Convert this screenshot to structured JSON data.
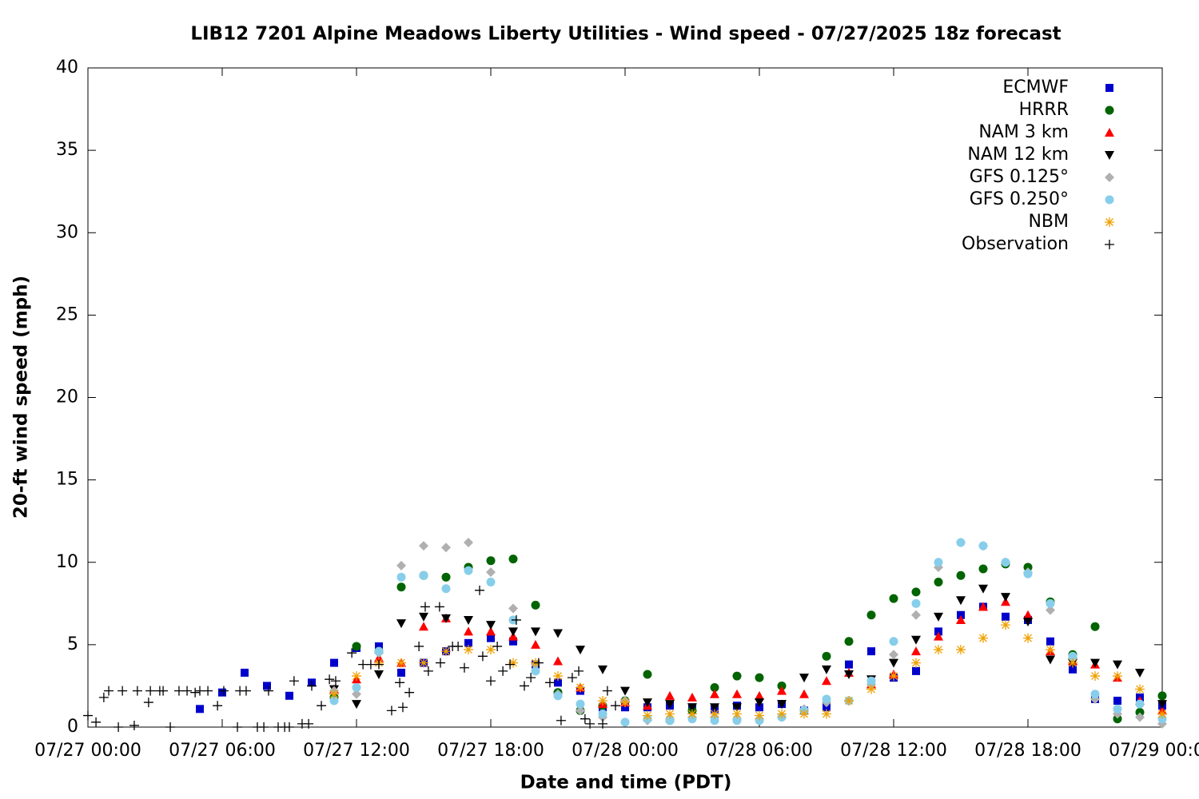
{
  "chart_data": {
    "type": "scatter",
    "title": "LIB12 7201 Alpine Meadows Liberty Utilities - Wind speed - 07/27/2025 18z forecast",
    "x_label": "Date and time (PDT)",
    "y_label": "20-ft wind speed (mph)",
    "xlim": [
      0,
      48
    ],
    "ylim": [
      0,
      40
    ],
    "xticks": [
      {
        "value": 0,
        "label": "07/27 00:00"
      },
      {
        "value": 6,
        "label": "07/27 06:00"
      },
      {
        "value": 12,
        "label": "07/27 12:00"
      },
      {
        "value": 18,
        "label": "07/27 18:00"
      },
      {
        "value": 24,
        "label": "07/28 00:00"
      },
      {
        "value": 30,
        "label": "07/28 06:00"
      },
      {
        "value": 36,
        "label": "07/28 12:00"
      },
      {
        "value": 42,
        "label": "07/28 18:00"
      },
      {
        "value": 48,
        "label": "07/29 00:00"
      }
    ],
    "yticks": [
      0,
      5,
      10,
      15,
      20,
      25,
      30,
      35,
      40
    ],
    "grid": false,
    "legend": "top-right",
    "series": [
      {
        "name": "ECMWF",
        "color": "#0000cc",
        "marker": "square",
        "x": [
          5,
          6,
          7,
          8,
          9,
          10,
          11,
          12,
          13,
          14,
          15,
          16,
          17,
          18,
          19,
          20,
          21,
          22,
          23,
          24,
          25,
          26,
          27,
          28,
          29,
          30,
          31,
          32,
          33,
          34,
          35,
          36,
          37,
          38,
          39,
          40,
          41,
          42,
          43,
          44,
          45,
          46,
          47,
          48
        ],
        "values": [
          1.1,
          2.1,
          3.3,
          2.5,
          1.9,
          2.7,
          3.9,
          4.8,
          4.9,
          3.3,
          3.9,
          4.6,
          5.1,
          5.4,
          5.2,
          3.8,
          2.7,
          2.2,
          1.2,
          1.2,
          1.2,
          1.3,
          1.2,
          1.1,
          1.3,
          1.2,
          1.4,
          1.0,
          1.2,
          3.8,
          4.6,
          3.0,
          3.4,
          5.8,
          6.8,
          7.3,
          6.7,
          6.5,
          5.2,
          3.5,
          1.7,
          1.6,
          1.8,
          1.3
        ]
      },
      {
        "name": "HRRR",
        "color": "#006400",
        "marker": "circle",
        "x": [
          11,
          12,
          13,
          14,
          15,
          16,
          17,
          18,
          19,
          20,
          21,
          22,
          23,
          24,
          25,
          26,
          27,
          28,
          29,
          30,
          31,
          32,
          33,
          34,
          35,
          36,
          37,
          38,
          39,
          40,
          41,
          42,
          43,
          44,
          45,
          46,
          47,
          48
        ],
        "values": [
          1.8,
          4.9,
          4.6,
          8.5,
          9.2,
          9.1,
          9.7,
          10.1,
          10.2,
          7.4,
          2.1,
          1.0,
          1.3,
          1.6,
          3.2,
          0.4,
          1.0,
          2.4,
          3.1,
          3.0,
          2.5,
          1.0,
          4.3,
          5.2,
          6.8,
          7.8,
          8.2,
          8.8,
          9.2,
          9.6,
          9.9,
          9.7,
          7.6,
          4.4,
          6.1,
          0.5,
          0.9,
          1.9
        ]
      },
      {
        "name": "NAM 3 km",
        "color": "#ff0000",
        "marker": "triangle",
        "x": [
          11,
          12,
          13,
          14,
          15,
          16,
          17,
          18,
          19,
          20,
          21,
          22,
          23,
          24,
          25,
          26,
          27,
          28,
          29,
          30,
          31,
          32,
          33,
          34,
          35,
          36,
          37,
          38,
          39,
          40,
          41,
          42,
          43,
          44,
          45,
          46,
          47,
          48
        ],
        "values": [
          2.3,
          2.9,
          4.2,
          3.9,
          6.1,
          6.6,
          5.8,
          5.8,
          5.5,
          5.0,
          4.0,
          2.4,
          1.4,
          1.5,
          1.3,
          1.9,
          1.8,
          2.0,
          2.0,
          1.9,
          2.2,
          2.0,
          2.8,
          3.3,
          2.6,
          3.2,
          4.6,
          5.5,
          6.5,
          7.3,
          7.6,
          6.8,
          4.6,
          4.0,
          3.8,
          3.0,
          1.6,
          1.0
        ]
      },
      {
        "name": "NAM 12 km",
        "color": "#000000",
        "marker": "triangle-down",
        "x": [
          11,
          12,
          13,
          14,
          15,
          16,
          17,
          18,
          19,
          20,
          21,
          22,
          23,
          24,
          25,
          26,
          27,
          28,
          29,
          30,
          31,
          32,
          33,
          34,
          35,
          36,
          37,
          38,
          39,
          40,
          41,
          42,
          43,
          44,
          45,
          46,
          47,
          48
        ],
        "values": [
          2.3,
          1.4,
          3.2,
          6.3,
          6.7,
          6.6,
          6.5,
          6.2,
          5.8,
          5.8,
          5.7,
          4.7,
          3.5,
          2.2,
          1.5,
          1.4,
          1.2,
          1.2,
          1.2,
          1.5,
          1.4,
          3.0,
          3.5,
          3.2,
          2.9,
          3.9,
          5.3,
          6.7,
          7.7,
          8.4,
          7.9,
          6.4,
          4.1,
          3.9,
          3.9,
          3.8,
          3.3,
          1.4
        ]
      },
      {
        "name": "GFS 0.125°",
        "color": "#b0b0b0",
        "marker": "diamond",
        "x": [
          11,
          12,
          13,
          14,
          15,
          16,
          17,
          18,
          19,
          20,
          21,
          22,
          23,
          24,
          25,
          26,
          27,
          28,
          29,
          30,
          31,
          32,
          33,
          34,
          35,
          36,
          37,
          38,
          39,
          40,
          41,
          42,
          43,
          44,
          45,
          46,
          47,
          48
        ],
        "values": [
          2.2,
          2.0,
          4.5,
          9.8,
          11.0,
          10.9,
          11.2,
          9.4,
          7.2,
          3.8,
          2.0,
          1.0,
          0.6,
          1.6,
          0.4,
          0.5,
          0.6,
          0.6,
          0.5,
          0.5,
          0.6,
          1.1,
          1.5,
          1.6,
          2.6,
          4.4,
          6.8,
          9.7,
          11.2,
          11.0,
          10.0,
          9.4,
          7.1,
          4.2,
          1.7,
          0.8,
          0.6,
          0.2
        ]
      },
      {
        "name": "GFS 0.250°",
        "color": "#87ceeb",
        "marker": "circle",
        "x": [
          11,
          12,
          13,
          14,
          15,
          16,
          17,
          18,
          19,
          20,
          21,
          22,
          23,
          24,
          25,
          26,
          27,
          28,
          29,
          30,
          31,
          32,
          33,
          34,
          35,
          36,
          37,
          38,
          39,
          40,
          41,
          42,
          43,
          44,
          45,
          46,
          47,
          48
        ],
        "values": [
          1.6,
          2.4,
          4.6,
          9.1,
          9.2,
          8.4,
          9.5,
          8.8,
          6.5,
          3.4,
          1.9,
          1.4,
          0.8,
          0.3,
          0.5,
          0.4,
          0.5,
          0.4,
          0.4,
          0.4,
          0.6,
          1.0,
          1.7,
          1.6,
          2.8,
          5.2,
          7.5,
          10.0,
          11.2,
          11.0,
          10.0,
          9.3,
          7.5,
          4.3,
          2.0,
          1.1,
          1.4,
          0.5
        ]
      },
      {
        "name": "NBM",
        "color": "#f0a000",
        "marker": "star",
        "x": [
          11,
          12,
          13,
          14,
          15,
          16,
          17,
          18,
          19,
          20,
          21,
          22,
          23,
          24,
          25,
          26,
          27,
          28,
          29,
          30,
          31,
          32,
          33,
          34,
          35,
          36,
          37,
          38,
          39,
          40,
          41,
          42,
          43,
          44,
          45,
          46,
          47,
          48
        ],
        "values": [
          2.0,
          3.1,
          3.9,
          3.9,
          3.9,
          4.6,
          4.7,
          4.7,
          3.9,
          3.9,
          3.1,
          2.4,
          1.6,
          1.5,
          0.7,
          0.8,
          0.8,
          0.8,
          0.8,
          0.7,
          0.8,
          0.8,
          0.8,
          1.6,
          2.3,
          3.1,
          3.9,
          4.7,
          4.7,
          5.4,
          6.2,
          5.4,
          4.7,
          3.9,
          3.1,
          3.1,
          2.3,
          0.8
        ]
      },
      {
        "name": "Observation",
        "color": "#000000",
        "marker": "plus",
        "x": [
          0.0,
          0.36,
          0.71,
          0.93,
          1.36,
          1.54,
          2.07,
          2.21,
          2.71,
          2.79,
          3.21,
          3.36,
          3.68,
          4.07,
          4.43,
          4.79,
          5.0,
          5.36,
          5.79,
          6.07,
          6.68,
          6.79,
          7.07,
          7.57,
          7.86,
          8.07,
          8.5,
          8.79,
          9.0,
          9.21,
          9.57,
          9.86,
          10.0,
          10.43,
          10.79,
          11.07,
          11.79,
          12.29,
          12.64,
          13.0,
          13.57,
          13.93,
          14.07,
          14.36,
          14.79,
          15.07,
          15.21,
          15.71,
          15.75,
          16.29,
          16.54,
          16.82,
          17.5,
          17.64,
          18.0,
          18.29,
          18.54,
          18.86,
          19.14,
          19.5,
          19.79,
          20.14,
          20.64,
          21.14,
          21.64,
          21.93,
          22.21,
          22.43,
          23.0,
          23.21,
          23.57
        ],
        "values": [
          0.7,
          0.3,
          1.8,
          2.2,
          0.0,
          2.2,
          0.1,
          2.2,
          1.5,
          2.2,
          2.2,
          2.2,
          0.0,
          2.2,
          2.2,
          2.1,
          2.2,
          2.2,
          1.3,
          2.2,
          0.0,
          2.2,
          2.2,
          0.0,
          0.0,
          2.2,
          0.0,
          0.0,
          0.0,
          2.8,
          0.2,
          0.2,
          2.5,
          1.3,
          2.9,
          2.8,
          4.5,
          3.8,
          3.8,
          3.8,
          1.0,
          2.7,
          1.2,
          2.1,
          4.9,
          7.3,
          3.4,
          7.3,
          3.9,
          4.9,
          4.9,
          3.6,
          8.3,
          4.3,
          2.8,
          4.9,
          3.4,
          3.8,
          6.5,
          2.5,
          3.0,
          3.9,
          2.7,
          0.4,
          3.0,
          3.4,
          0.5,
          0.2,
          0.2,
          2.2,
          1.3
        ]
      }
    ]
  }
}
